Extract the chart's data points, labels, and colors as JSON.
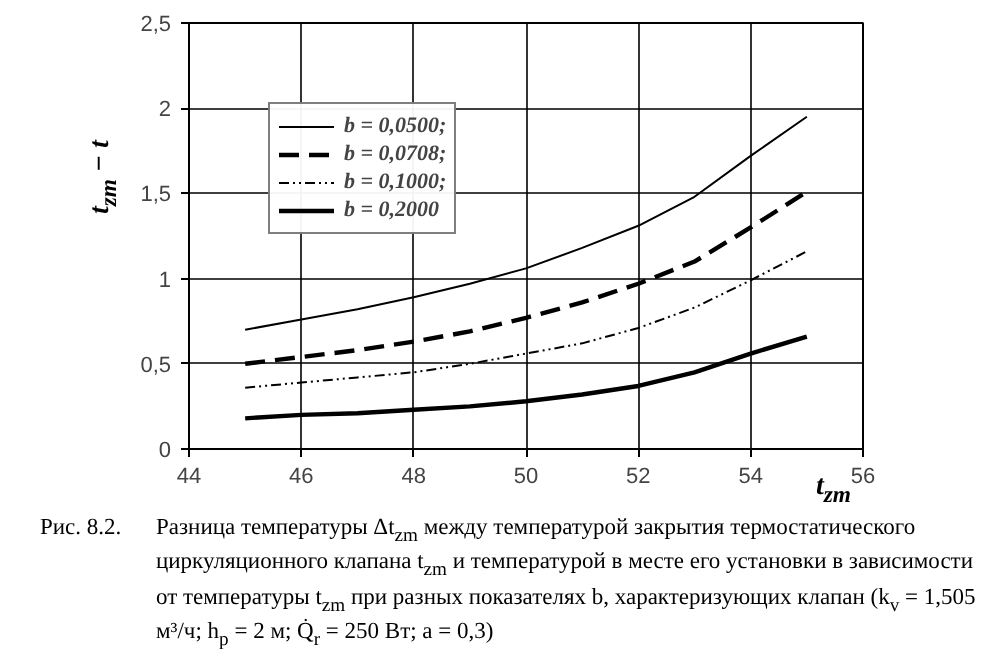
{
  "chart_data": {
    "type": "line",
    "xlabel": "t$_{zm}$",
    "ylabel": "t$_{zm}$ − t",
    "x": [
      45,
      46,
      47,
      48,
      49,
      50,
      51,
      52,
      53,
      54,
      55
    ],
    "series": [
      {
        "name": "b = 0,0500;",
        "color": "#000000",
        "line_style": "solid",
        "values": [
          0.7,
          0.76,
          0.82,
          0.89,
          0.97,
          1.06,
          1.18,
          1.31,
          1.48,
          1.72,
          1.95
        ]
      },
      {
        "name": "b = 0,0708;",
        "color": "#000000",
        "line_style": "dashed",
        "values": [
          0.5,
          0.54,
          0.58,
          0.63,
          0.69,
          0.77,
          0.86,
          0.97,
          1.1,
          1.3,
          1.51
        ]
      },
      {
        "name": "b = 0,1000;",
        "color": "#000000",
        "line_style": "dotted",
        "values": [
          0.36,
          0.39,
          0.42,
          0.45,
          0.5,
          0.56,
          0.62,
          0.71,
          0.83,
          0.99,
          1.16
        ]
      },
      {
        "name": "b = 0,2000",
        "color": "#000000",
        "line_style": "solid",
        "values": [
          0.18,
          0.2,
          0.21,
          0.23,
          0.25,
          0.28,
          0.32,
          0.37,
          0.45,
          0.56,
          0.66
        ]
      }
    ],
    "xlim": [
      44,
      56
    ],
    "xticks": [
      44,
      46,
      48,
      50,
      52,
      54,
      56
    ],
    "ylim": [
      0,
      2.5
    ],
    "yticks": [
      0,
      {
        "value": 0.5,
        "label": "0,5"
      },
      1,
      {
        "value": 1.5,
        "label": "1,5"
      },
      2,
      {
        "value": 2.5,
        "label": "2,5"
      }
    ],
    "grid": true,
    "legend": "top left",
    "annotations": [
      "Рис. 8.2.",
      "Разница температуры Δt$_{zm}$ между температурой закрытия термостатического циркуляционного клапана t$_{zm}$ и температурой в месте его установки в зависимости от температуры t$_{zm}$ при разных показателях b, характеризующих клапан (k$_{v}$ = 1,505 м³/ч; h$_{p}$ = 2 м; Q̇$_{r}$ = 250 Вт; a = 0,3)"
    ]
  }
}
